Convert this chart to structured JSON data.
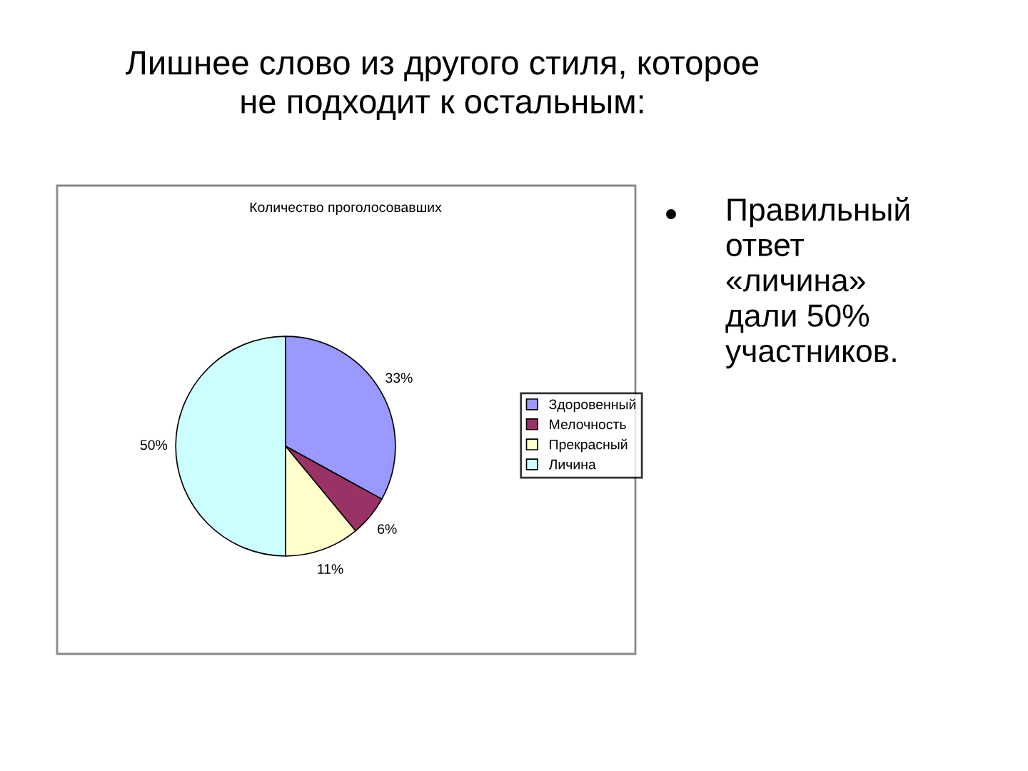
{
  "chart_data": {
    "type": "pie",
    "title": "Количество проголосовавших",
    "categories": [
      "Здоровенный",
      "Мелочность",
      "Прекрасный",
      "Личина"
    ],
    "values": [
      33,
      6,
      11,
      50
    ],
    "colors": [
      "#9999ff",
      "#993366",
      "#ffffcc",
      "#ccffff"
    ],
    "value_labels": [
      "33%",
      "6%",
      "11%",
      "50%"
    ],
    "legend": "right",
    "annotations": [
      "Лишнее слово из другого стиля, которое\nне подходит к остальным:",
      "Правильный\nответ\n«личина»\nдали 50%\nучастников."
    ]
  }
}
